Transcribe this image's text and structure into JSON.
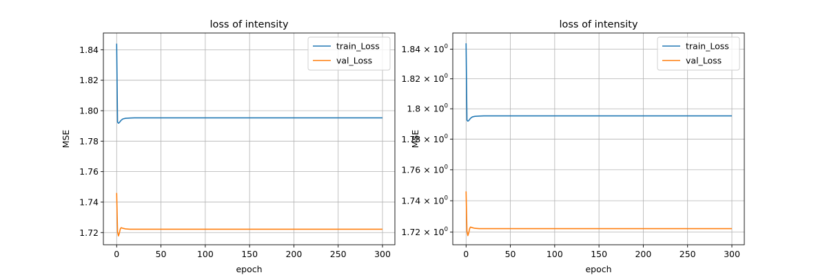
{
  "chart_data": [
    {
      "type": "line",
      "title": "loss of intensity",
      "xlabel": "epoch",
      "ylabel": "MSE",
      "yscale": "linear",
      "xlim": [
        -15,
        314
      ],
      "ylim": [
        1.712,
        1.851
      ],
      "xticks": [
        0,
        50,
        100,
        150,
        200,
        250,
        300
      ],
      "xtick_labels": [
        "0",
        "50",
        "100",
        "150",
        "200",
        "250",
        "300"
      ],
      "yticks": [
        1.72,
        1.74,
        1.76,
        1.78,
        1.8,
        1.82,
        1.84
      ],
      "ytick_labels": [
        "1.72",
        "1.74",
        "1.76",
        "1.78",
        "1.80",
        "1.82",
        "1.84"
      ],
      "grid": true,
      "legend_position": "top-right",
      "series": [
        {
          "name": "train_Loss",
          "color": "#1f77b4",
          "points": [
            [
              0,
              1.844
            ],
            [
              1,
              1.7925
            ],
            [
              2,
              1.7918
            ],
            [
              3,
              1.7922
            ],
            [
              5,
              1.7937
            ],
            [
              7,
              1.7946
            ],
            [
              10,
              1.795
            ],
            [
              15,
              1.7952
            ],
            [
              20,
              1.7953
            ],
            [
              300,
              1.7953
            ]
          ]
        },
        {
          "name": "val_Loss",
          "color": "#ff7f0e",
          "points": [
            [
              0,
              1.746
            ],
            [
              1,
              1.7205
            ],
            [
              2,
              1.7178
            ],
            [
              3,
              1.7195
            ],
            [
              4,
              1.7222
            ],
            [
              5,
              1.7232
            ],
            [
              7,
              1.7228
            ],
            [
              10,
              1.7224
            ],
            [
              15,
              1.7222
            ],
            [
              300,
              1.7222
            ]
          ]
        }
      ]
    },
    {
      "type": "line",
      "title": "loss of intensity",
      "xlabel": "epoch",
      "ylabel": "MSE",
      "yscale": "log",
      "xlim": [
        -15,
        314
      ],
      "ylim": [
        1.712,
        1.851
      ],
      "xticks": [
        0,
        50,
        100,
        150,
        200,
        250,
        300
      ],
      "xtick_labels": [
        "0",
        "50",
        "100",
        "150",
        "200",
        "250",
        "300"
      ],
      "yticks": [
        1.72,
        1.74,
        1.76,
        1.78,
        1.8,
        1.82,
        1.84
      ],
      "ytick_mantissas": [
        "1.72",
        "1.74",
        "1.76",
        "1.78",
        "1.8",
        "1.82",
        "1.84"
      ],
      "ytick_base": "10",
      "ytick_exponent": "0",
      "grid": true,
      "legend_position": "top-right",
      "series": [
        {
          "name": "train_Loss",
          "color": "#1f77b4",
          "points": [
            [
              0,
              1.844
            ],
            [
              1,
              1.7925
            ],
            [
              2,
              1.7918
            ],
            [
              3,
              1.7922
            ],
            [
              5,
              1.7937
            ],
            [
              7,
              1.7946
            ],
            [
              10,
              1.795
            ],
            [
              15,
              1.7952
            ],
            [
              20,
              1.7953
            ],
            [
              300,
              1.7953
            ]
          ]
        },
        {
          "name": "val_Loss",
          "color": "#ff7f0e",
          "points": [
            [
              0,
              1.746
            ],
            [
              1,
              1.7205
            ],
            [
              2,
              1.7178
            ],
            [
              3,
              1.7195
            ],
            [
              4,
              1.7222
            ],
            [
              5,
              1.7232
            ],
            [
              7,
              1.7228
            ],
            [
              10,
              1.7224
            ],
            [
              15,
              1.7222
            ],
            [
              300,
              1.7222
            ]
          ]
        }
      ]
    }
  ]
}
